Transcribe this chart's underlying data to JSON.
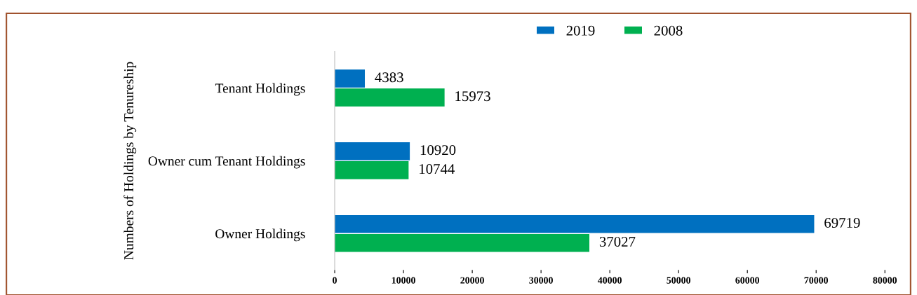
{
  "chart_data": {
    "type": "bar",
    "orientation": "horizontal",
    "ylabel": "Numbers of Holdings by Tenureship",
    "categories": [
      "Tenant Holdings",
      "Owner cum Tenant Holdings",
      "Owner Holdings"
    ],
    "series": [
      {
        "name": "2019",
        "color": "#0070c0",
        "values": [
          4383,
          10920,
          69719
        ]
      },
      {
        "name": "2008",
        "color": "#00b050",
        "values": [
          15973,
          10744,
          37027
        ]
      }
    ],
    "xlim": [
      0,
      80000
    ],
    "xticks": [
      0,
      10000,
      20000,
      30000,
      40000,
      50000,
      60000,
      70000,
      80000
    ],
    "data_labels": true,
    "legend": "top",
    "grid": false
  }
}
